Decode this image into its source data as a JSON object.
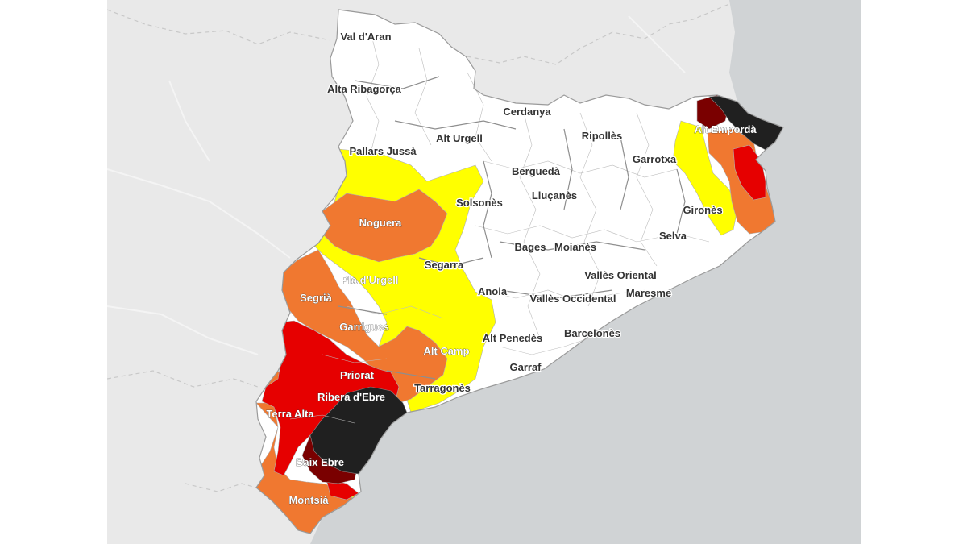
{
  "map": {
    "legend_colors": {
      "none": "#ffffff",
      "yellow": "#ffff00",
      "orange": "#f07830",
      "red": "#e60000",
      "darkred": "#7a0000",
      "black": "#202020"
    },
    "comarques": [
      {
        "name": "Val d'Aran",
        "level": "none"
      },
      {
        "name": "Alta Ribagorça",
        "level": "none"
      },
      {
        "name": "Cerdanya",
        "level": "none"
      },
      {
        "name": "Alt Urgell",
        "level": "none"
      },
      {
        "name": "Ripollès",
        "level": "none"
      },
      {
        "name": "Alt Empordà",
        "level": "black"
      },
      {
        "name": "Pallars Jussà",
        "level": "yellow"
      },
      {
        "name": "Garrotxa",
        "level": "none"
      },
      {
        "name": "Berguedà",
        "level": "none"
      },
      {
        "name": "Solsonès",
        "level": "yellow"
      },
      {
        "name": "Lluçanès",
        "level": "none"
      },
      {
        "name": "Noguera",
        "level": "orange"
      },
      {
        "name": "Gironès",
        "level": "none"
      },
      {
        "name": "Selva",
        "level": "none"
      },
      {
        "name": "Bages",
        "level": "none"
      },
      {
        "name": "Moianès",
        "level": "none"
      },
      {
        "name": "Segarra",
        "level": "yellow"
      },
      {
        "name": "Pla d'Urgell",
        "level": "orange"
      },
      {
        "name": "Vallès Oriental",
        "level": "none"
      },
      {
        "name": "Anoia",
        "level": "yellow"
      },
      {
        "name": "Segrià",
        "level": "orange"
      },
      {
        "name": "Maresme",
        "level": "none"
      },
      {
        "name": "Vallès Occidental",
        "level": "none"
      },
      {
        "name": "Garrigues",
        "level": "red"
      },
      {
        "name": "Barcelonès",
        "level": "none"
      },
      {
        "name": "Alt Penedès",
        "level": "yellow"
      },
      {
        "name": "Alt Camp",
        "level": "orange"
      },
      {
        "name": "Garraf",
        "level": "none"
      },
      {
        "name": "Priorat",
        "level": "red"
      },
      {
        "name": "Tarragonès",
        "level": "yellow"
      },
      {
        "name": "Ribera d'Ebre",
        "level": "black"
      },
      {
        "name": "Terra Alta",
        "level": "red"
      },
      {
        "name": "Baix Ebre",
        "level": "black"
      },
      {
        "name": "Montsià",
        "level": "orange"
      }
    ]
  }
}
